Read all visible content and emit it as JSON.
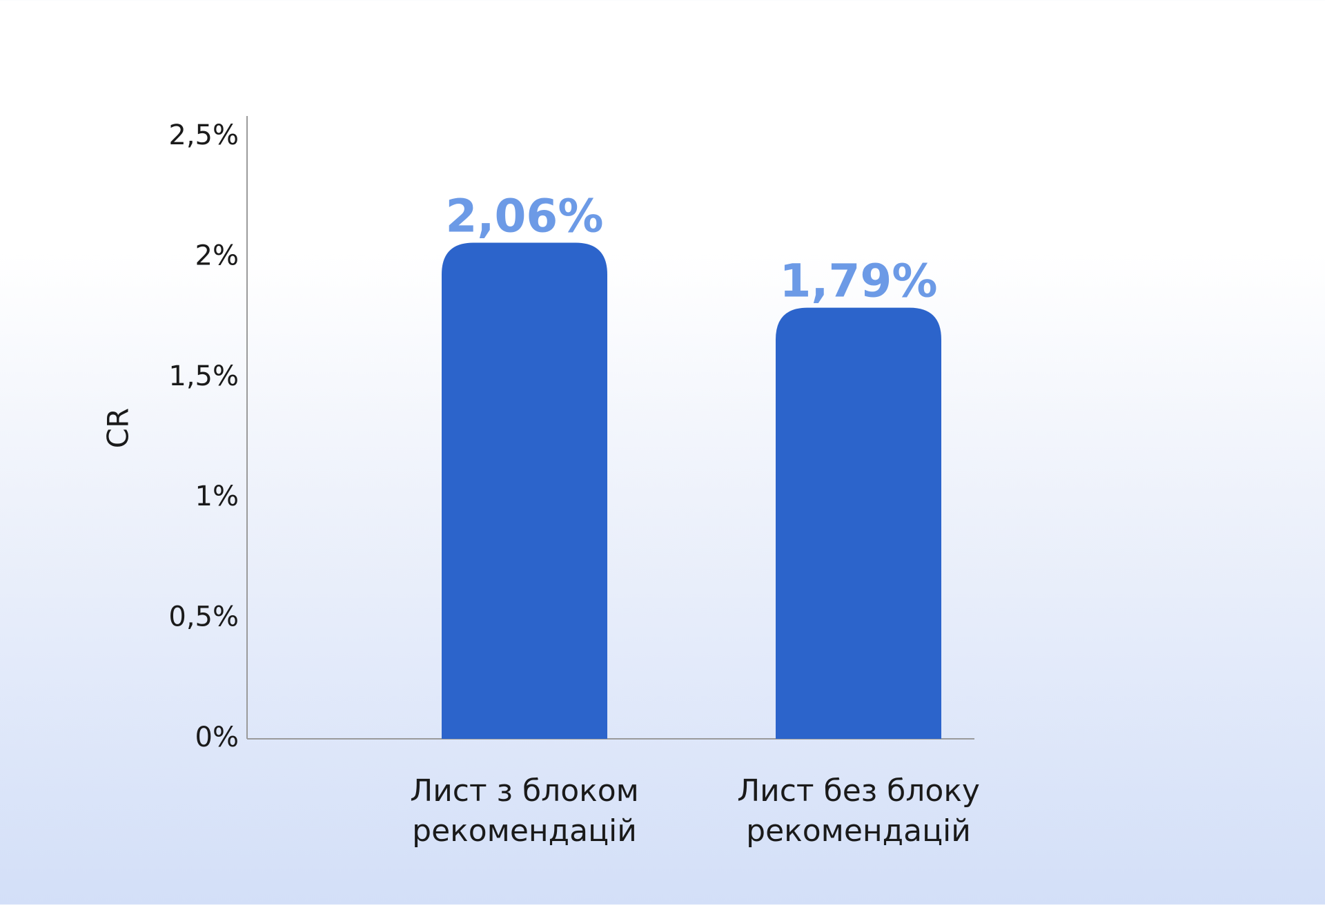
{
  "chart_data": {
    "type": "bar",
    "title": "",
    "xlabel": "",
    "ylabel": "CR",
    "ylim": [
      0,
      2.5
    ],
    "yticks": [
      0,
      0.5,
      1,
      1.5,
      2,
      2.5
    ],
    "ytick_labels": [
      "0%",
      "0,5%",
      "1%",
      "1,5%",
      "2%",
      "2,5%"
    ],
    "categories": [
      [
        "Лист з блоком",
        "рекомендацій"
      ],
      [
        "Лист без блоку",
        "рекомендацій"
      ]
    ],
    "values": [
      2.06,
      1.79
    ],
    "value_labels": [
      "2,06%",
      "1,79%"
    ],
    "grid": false,
    "legend": "none",
    "colors": {
      "bar": "#2c64cb",
      "data_label": "#6c9ae6",
      "axis": "#9a9a9a",
      "text": "#1a1a1a"
    }
  }
}
